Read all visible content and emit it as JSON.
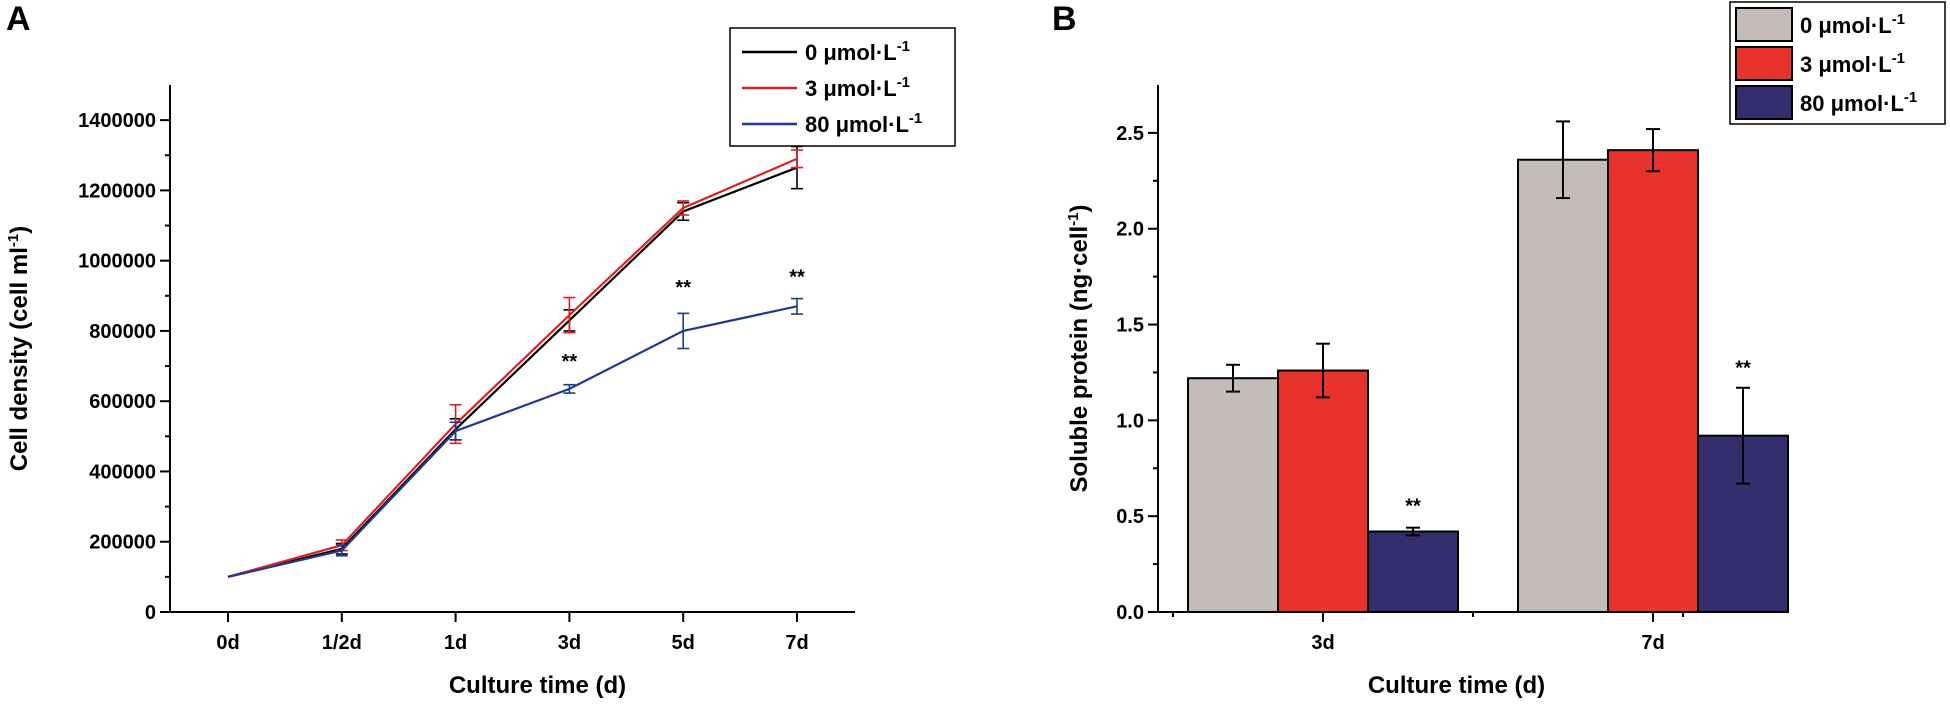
{
  "chart_data": [
    {
      "panel": "A",
      "type": "line",
      "categories": [
        "0d",
        "1/2d",
        "1d",
        "3d",
        "5d",
        "7d"
      ],
      "xlabel": "Culture time (d)",
      "ylabel": "Cell density (cell ml",
      "ylabel_sup": "-1",
      "ylabel_end": ")",
      "ylim": [
        0,
        1500000
      ],
      "yticks": [
        0,
        200000,
        400000,
        600000,
        800000,
        1000000,
        1200000,
        1400000
      ],
      "ytick_labels": [
        "0",
        "200000",
        "400000",
        "600000",
        "800000",
        "1000000",
        "1200000",
        "1400000"
      ],
      "series": [
        {
          "name": "0 μmol·L",
          "sup": "-1",
          "color": "#000000",
          "values": [
            100000,
            180000,
            520000,
            830000,
            1140000,
            1265000
          ],
          "errors": [
            0,
            15000,
            30000,
            30000,
            25000,
            60000
          ]
        },
        {
          "name": "3 μmol·L",
          "sup": "-1",
          "color": "#e02020",
          "values": [
            100000,
            190000,
            535000,
            845000,
            1150000,
            1290000
          ],
          "errors": [
            0,
            15000,
            55000,
            50000,
            20000,
            25000
          ]
        },
        {
          "name": "80 μmol·L",
          "sup": "-1",
          "color": "#1f3a93",
          "values": [
            100000,
            175000,
            515000,
            635000,
            800000,
            870000
          ],
          "errors": [
            0,
            15000,
            25000,
            12000,
            50000,
            22000
          ]
        }
      ],
      "annotations": [
        {
          "text": "**",
          "category": "3d",
          "y": 695000
        },
        {
          "text": "**",
          "category": "5d",
          "y": 905000
        },
        {
          "text": "**",
          "category": "7d",
          "y": 935000
        }
      ],
      "legend_position": "top-right",
      "panel_label": "A"
    },
    {
      "panel": "B",
      "type": "bar",
      "categories": [
        "3d",
        "7d"
      ],
      "xlabel": "Culture time (d)",
      "ylabel": "Soluble protein (ng·cell",
      "ylabel_sup": "-1",
      "ylabel_end": ")",
      "ylim": [
        0,
        2.75
      ],
      "yticks": [
        0,
        0.5,
        1,
        1.5,
        2,
        2.5
      ],
      "ytick_labels": [
        "0.0",
        "0.5",
        "1.0",
        "1.5",
        "2.0",
        "2.5"
      ],
      "series": [
        {
          "name": "0 μmol·L",
          "sup": "-1",
          "color": "#c4bcb9",
          "values": [
            1.22,
            2.36
          ],
          "errors": [
            0.07,
            0.2
          ]
        },
        {
          "name": "3 μmol·L",
          "sup": "-1",
          "color": "#e8332d",
          "values": [
            1.26,
            2.41
          ],
          "errors": [
            0.14,
            0.11
          ]
        },
        {
          "name": "80 μmol·L",
          "sup": "-1",
          "color": "#342e6e",
          "values": [
            0.42,
            0.92
          ],
          "errors": [
            0.02,
            0.25
          ]
        }
      ],
      "annotations": [
        {
          "text": "**",
          "category": "3d",
          "series": 2,
          "y": 0.52
        },
        {
          "text": "**",
          "category": "7d",
          "series": 2,
          "y": 1.24
        }
      ],
      "legend_position": "top-right",
      "panel_label": "B"
    }
  ]
}
